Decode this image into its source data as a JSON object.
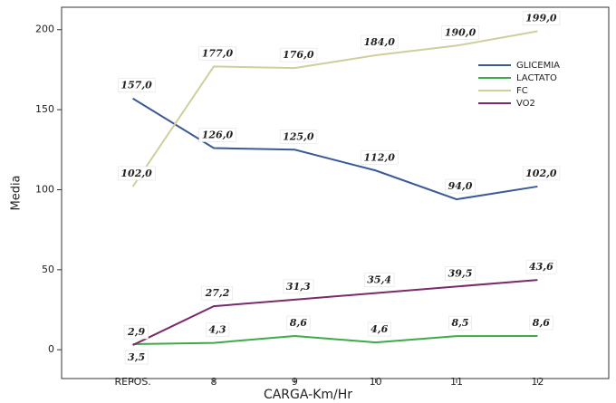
{
  "chart_data": {
    "type": "line",
    "x_label": "CARGA-Km/Hr",
    "y_label": "Media",
    "categories": [
      "REPOS.",
      "8",
      "9",
      "10",
      "11",
      "12"
    ],
    "ylim": [
      -18,
      214
    ],
    "yticks": [
      0,
      50,
      100,
      150,
      200
    ],
    "series": [
      {
        "name": "GLICEMIA",
        "color": "#3b5996",
        "values": [
          157,
          126,
          125,
          112,
          94,
          102
        ],
        "value_labels": [
          "157,0",
          "126,0",
          "125,0",
          "112,0",
          "94,0",
          "102,0"
        ]
      },
      {
        "name": "LACTATO",
        "color": "#3daa4a",
        "values": [
          3.5,
          4.3,
          8.6,
          4.6,
          8.5,
          8.6
        ],
        "value_labels": [
          "3,5",
          "4,3",
          "8,6",
          "4,6",
          "8,5",
          "8,6"
        ]
      },
      {
        "name": "FC",
        "color": "#cfcf9c",
        "values": [
          102,
          177,
          176,
          184,
          190,
          199
        ],
        "value_labels": [
          "102,0",
          "177,0",
          "176,0",
          "184,0",
          "190,0",
          "199,0"
        ]
      },
      {
        "name": "VO2",
        "color": "#7b2a6c",
        "values": [
          2.9,
          27.2,
          31.3,
          35.4,
          39.5,
          43.6
        ],
        "value_labels": [
          "2,9",
          "27,2",
          "31,3",
          "35,4",
          "39,5",
          "43,6"
        ]
      }
    ]
  }
}
